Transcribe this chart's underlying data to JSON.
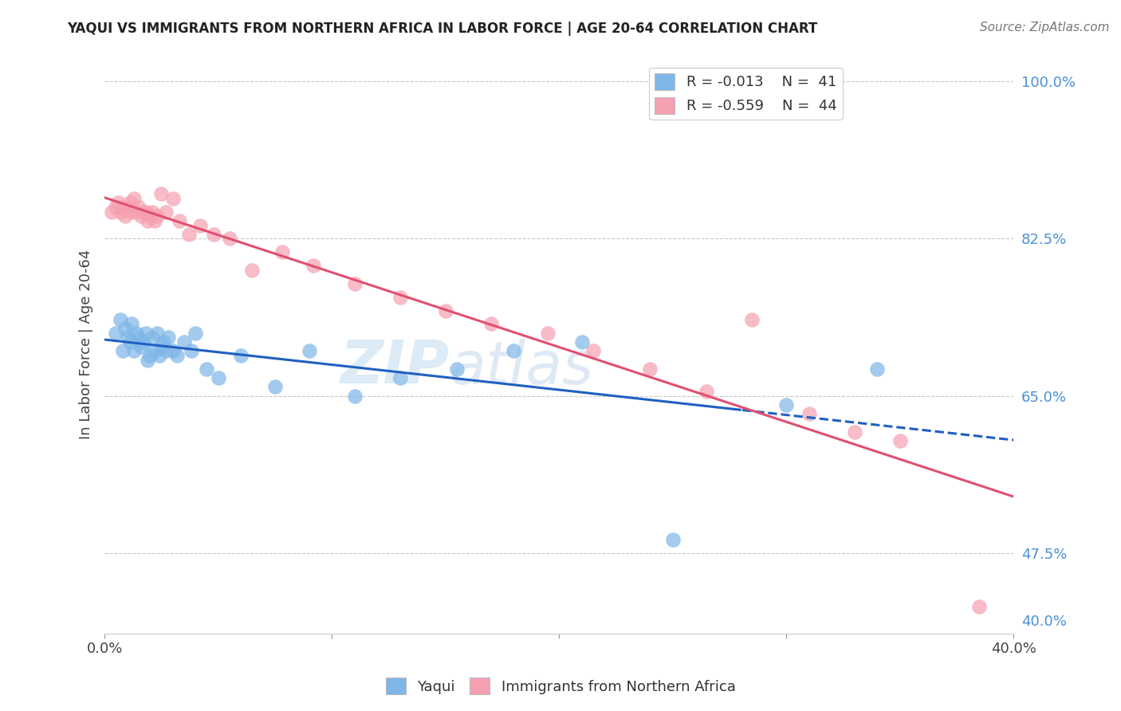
{
  "title": "YAQUI VS IMMIGRANTS FROM NORTHERN AFRICA IN LABOR FORCE | AGE 20-64 CORRELATION CHART",
  "source": "Source: ZipAtlas.com",
  "xlabel": "",
  "ylabel": "In Labor Force | Age 20-64",
  "xmin": 0.0,
  "xmax": 0.4,
  "ymin": 0.385,
  "ymax": 1.03,
  "yticks": [
    1.0,
    0.825,
    0.65,
    0.475
  ],
  "ytick_labels": [
    "100.0%",
    "82.5%",
    "65.0%",
    "47.5%"
  ],
  "yright_extra": 0.4,
  "yright_extra_label": "40.0%",
  "xticks": [
    0.0,
    0.1,
    0.2,
    0.3,
    0.4
  ],
  "xtick_labels": [
    "0.0%",
    "",
    "",
    "",
    "40.0%"
  ],
  "legend_r1": "R = -0.013",
  "legend_n1": "N =  41",
  "legend_r2": "R = -0.559",
  "legend_n2": "N =  44",
  "color_yaqui": "#7eb6e8",
  "color_immigrants": "#f5a0b0",
  "line_color_yaqui_solid": "#2060c0",
  "line_color_yaqui_dash": "#2060c0",
  "line_color_immigrants": "#e05070",
  "background_color": "#ffffff",
  "grid_color": "#c8c8c8",
  "watermark_zip": "ZIP",
  "watermark_atlas": "atlas",
  "yaqui_x": [
    0.005,
    0.007,
    0.008,
    0.009,
    0.01,
    0.011,
    0.012,
    0.013,
    0.014,
    0.015,
    0.016,
    0.017,
    0.018,
    0.019,
    0.02,
    0.021,
    0.022,
    0.023,
    0.024,
    0.025,
    0.026,
    0.027,
    0.028,
    0.03,
    0.032,
    0.035,
    0.038,
    0.04,
    0.045,
    0.05,
    0.06,
    0.075,
    0.09,
    0.11,
    0.13,
    0.155,
    0.18,
    0.21,
    0.25,
    0.3,
    0.34
  ],
  "yaqui_y": [
    0.72,
    0.735,
    0.7,
    0.725,
    0.715,
    0.71,
    0.73,
    0.7,
    0.72,
    0.715,
    0.705,
    0.71,
    0.72,
    0.69,
    0.695,
    0.715,
    0.7,
    0.72,
    0.695,
    0.705,
    0.71,
    0.7,
    0.715,
    0.7,
    0.695,
    0.71,
    0.7,
    0.72,
    0.68,
    0.67,
    0.695,
    0.66,
    0.7,
    0.65,
    0.67,
    0.68,
    0.7,
    0.71,
    0.49,
    0.64,
    0.68
  ],
  "immigrants_x": [
    0.003,
    0.005,
    0.006,
    0.007,
    0.008,
    0.009,
    0.01,
    0.011,
    0.012,
    0.013,
    0.014,
    0.015,
    0.016,
    0.017,
    0.018,
    0.019,
    0.02,
    0.021,
    0.022,
    0.023,
    0.025,
    0.027,
    0.03,
    0.033,
    0.037,
    0.042,
    0.048,
    0.055,
    0.065,
    0.078,
    0.092,
    0.11,
    0.13,
    0.15,
    0.17,
    0.195,
    0.215,
    0.24,
    0.265,
    0.285,
    0.31,
    0.33,
    0.35,
    0.385
  ],
  "immigrants_y": [
    0.855,
    0.86,
    0.865,
    0.855,
    0.86,
    0.85,
    0.86,
    0.865,
    0.855,
    0.87,
    0.855,
    0.86,
    0.85,
    0.855,
    0.855,
    0.845,
    0.85,
    0.855,
    0.845,
    0.85,
    0.875,
    0.855,
    0.87,
    0.845,
    0.83,
    0.84,
    0.83,
    0.825,
    0.79,
    0.81,
    0.795,
    0.775,
    0.76,
    0.745,
    0.73,
    0.72,
    0.7,
    0.68,
    0.655,
    0.735,
    0.63,
    0.61,
    0.6,
    0.415
  ],
  "yaqui_line_solid_end": 0.28,
  "yaqui_line_dash_start": 0.28
}
